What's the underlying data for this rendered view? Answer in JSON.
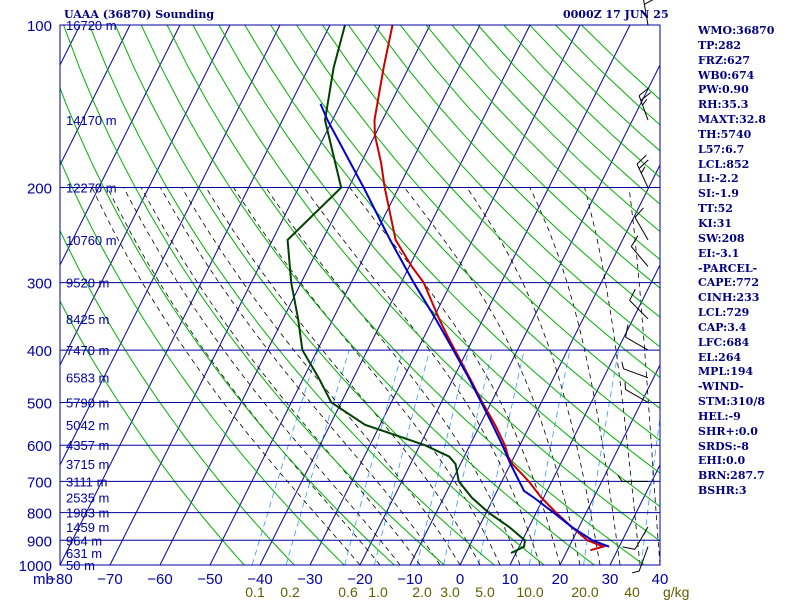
{
  "header": {
    "station": "UAAA (36870) Sounding",
    "time": "0000Z 17 JUN 25"
  },
  "colors": {
    "frame": "#0000a0",
    "text": "#000080",
    "isotherm": "#0000a0",
    "dry_adiabat": "#00b000",
    "moist_adiabat": "#000000",
    "mixing_ratio": "#3399ff",
    "temperature": "#cc0000",
    "dewpoint": "#004000",
    "parcel": "#0000cc",
    "wind": "#000000",
    "right_axis_label": "#606000"
  },
  "indices": [
    "WMO:36870",
    "TP:282",
    "FRZ:627",
    "WB0:674",
    "PW:0.90",
    "RH:35.3",
    "MAXT:32.8",
    "TH:5740",
    "L57:6.7",
    "LCL:852",
    "LI:-2.2",
    "SI:-1.9",
    "TT:52",
    "KI:31",
    "SW:208",
    "EI:-3.1",
    "-PARCEL-",
    "CAPE:772",
    "CINH:233",
    "LCL:729",
    "CAP:3.4",
    "LFC:684",
    "EL:264",
    "MPL:194",
    "-WIND-",
    "STM:310/8",
    "HEL:-9",
    "SHR+:0.0",
    "SRDS:-8",
    "EHI:0.0",
    "BRN:287.7",
    "BSHR:3"
  ],
  "chart_data": {
    "type": "line",
    "title": "UAAA (36870) Sounding",
    "subtitle": "0000Z 17 JUN 25",
    "grid": true,
    "y_scale": "log-pressure",
    "ylim": [
      1000,
      100
    ],
    "xlim": [
      -80,
      40
    ],
    "x_ticks": [
      "−80",
      "−70",
      "−60",
      "−50",
      "−40",
      "−30",
      "−20",
      "−10",
      "0",
      "10",
      "20",
      "30",
      "40"
    ],
    "x_tick_values": [
      -80,
      -70,
      -60,
      -50,
      -40,
      -30,
      -20,
      -10,
      0,
      10,
      20,
      30,
      40
    ],
    "y_axis_label": "mb",
    "y_ticks": [
      100,
      200,
      300,
      400,
      500,
      600,
      700,
      800,
      900,
      1000
    ],
    "height_labels": [
      {
        "p": 100,
        "text": "16720 m"
      },
      {
        "p": 150,
        "text": "14170 m"
      },
      {
        "p": 200,
        "text": "12270 m"
      },
      {
        "p": 250,
        "text": "10760 m"
      },
      {
        "p": 300,
        "text": "9520 m"
      },
      {
        "p": 350,
        "text": "8425 m"
      },
      {
        "p": 400,
        "text": "7470 m"
      },
      {
        "p": 450,
        "text": "6583 m"
      },
      {
        "p": 500,
        "text": "5790 m"
      },
      {
        "p": 550,
        "text": "5042 m"
      },
      {
        "p": 600,
        "text": "4357 m"
      },
      {
        "p": 650,
        "text": "3715 m"
      },
      {
        "p": 700,
        "text": "3111 m"
      },
      {
        "p": 750,
        "text": "2535 m"
      },
      {
        "p": 800,
        "text": "1983 m"
      },
      {
        "p": 850,
        "text": "1459 m"
      },
      {
        "p": 900,
        "text": "964 m"
      },
      {
        "p": 950,
        "text": "631 m"
      },
      {
        "p": 1000,
        "text": "50 m"
      }
    ],
    "mixing_ratio_labels": [
      {
        "label": "0.1",
        "value": 0.1
      },
      {
        "label": "0.2",
        "value": 0.2
      },
      {
        "label": "0.6",
        "value": 0.6
      },
      {
        "label": "1.0",
        "value": 1.0
      },
      {
        "label": "2.0",
        "value": 2.0
      },
      {
        "label": "3.0",
        "value": 3.0
      },
      {
        "label": "5.0",
        "value": 5.0
      },
      {
        "label": "10.0",
        "value": 10.0
      },
      {
        "label": "20.0",
        "value": 20.0
      },
      {
        "label": "40",
        "value": 40
      }
    ],
    "mixing_ratio_unit": "g/kg",
    "series": [
      {
        "key": "temperature",
        "points": [
          [
            939,
            24.6
          ],
          [
            925,
            26.8
          ],
          [
            900,
            23.0
          ],
          [
            850,
            18.5
          ],
          [
            800,
            14.0
          ],
          [
            750,
            9.5
          ],
          [
            700,
            5.4
          ],
          [
            650,
            0.4
          ],
          [
            630,
            -1.2
          ],
          [
            600,
            -3.0
          ],
          [
            550,
            -7.0
          ],
          [
            500,
            -11.8
          ],
          [
            450,
            -16.8
          ],
          [
            400,
            -22.5
          ],
          [
            380,
            -25.0
          ],
          [
            350,
            -28.8
          ],
          [
            300,
            -35.5
          ],
          [
            280,
            -39.5
          ],
          [
            250,
            -45.4
          ],
          [
            200,
            -52.8
          ],
          [
            180,
            -56.0
          ],
          [
            160,
            -60.0
          ],
          [
            150,
            -61.6
          ],
          [
            120,
            -65.0
          ],
          [
            100,
            -67.5
          ]
        ]
      },
      {
        "key": "dewpoint",
        "points": [
          [
            950,
            9.0
          ],
          [
            925,
            11.0
          ],
          [
            900,
            10.5
          ],
          [
            850,
            6.0
          ],
          [
            800,
            0.5
          ],
          [
            750,
            -4.4
          ],
          [
            700,
            -8.6
          ],
          [
            650,
            -11.0
          ],
          [
            630,
            -13.0
          ],
          [
            600,
            -19.0
          ],
          [
            550,
            -33.0
          ],
          [
            500,
            -42.0
          ],
          [
            450,
            -47.0
          ],
          [
            400,
            -53.0
          ],
          [
            350,
            -57.0
          ],
          [
            300,
            -62.0
          ],
          [
            250,
            -67.0
          ],
          [
            200,
            -61.5
          ],
          [
            150,
            -71.5
          ],
          [
            120,
            -75.0
          ],
          [
            100,
            -77.0
          ]
        ]
      },
      {
        "key": "parcel",
        "points": [
          [
            925,
            28.0
          ],
          [
            900,
            24.0
          ],
          [
            850,
            18.5
          ],
          [
            800,
            13.5
          ],
          [
            750,
            8.0
          ],
          [
            729,
            5.4
          ],
          [
            700,
            3.5
          ],
          [
            650,
            0.0
          ],
          [
            600,
            -3.5
          ],
          [
            550,
            -7.5
          ],
          [
            500,
            -12.0
          ],
          [
            450,
            -17.0
          ],
          [
            400,
            -22.8
          ],
          [
            350,
            -29.5
          ],
          [
            300,
            -37.5
          ],
          [
            250,
            -46.5
          ],
          [
            200,
            -57.0
          ],
          [
            150,
            -71.0
          ],
          [
            140,
            -74.0
          ]
        ]
      }
    ],
    "wind_barbs": [
      {
        "p": 100,
        "dir": 350,
        "spd": 20
      },
      {
        "p": 150,
        "dir": 340,
        "spd": 25
      },
      {
        "p": 200,
        "dir": 335,
        "spd": 25
      },
      {
        "p": 250,
        "dir": 330,
        "spd": 10
      },
      {
        "p": 280,
        "dir": 320,
        "spd": 10
      },
      {
        "p": 350,
        "dir": 315,
        "spd": 10
      },
      {
        "p": 400,
        "dir": 300,
        "spd": 10
      },
      {
        "p": 450,
        "dir": 290,
        "spd": 5
      },
      {
        "p": 500,
        "dir": 300,
        "spd": 5
      },
      {
        "p": 700,
        "dir": 270,
        "spd": 5
      },
      {
        "p": 850,
        "dir": 210,
        "spd": 10
      },
      {
        "p": 925,
        "dir": 200,
        "spd": 5
      }
    ]
  }
}
